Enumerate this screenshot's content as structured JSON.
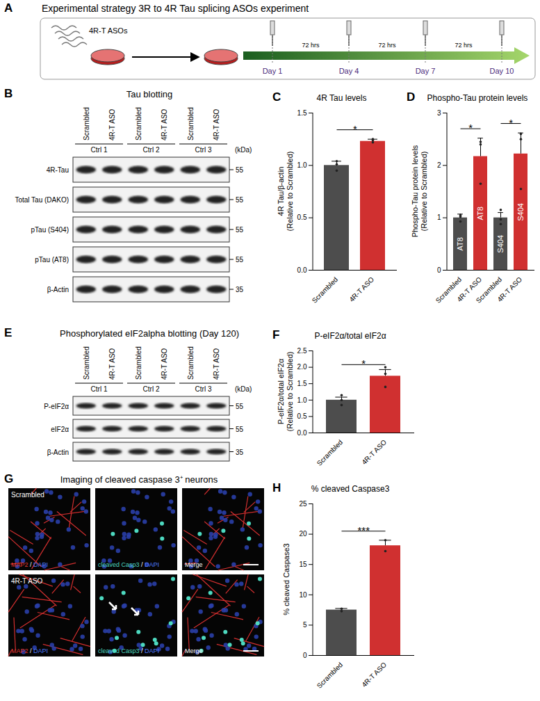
{
  "panel_a": {
    "label": "A",
    "title": "Experimental strategy 3R to 4R Tau splicing ASOs experiment",
    "reagent": "4R-T ASOs",
    "days": [
      "Day 1",
      "Day 4",
      "Day 7",
      "Day 10"
    ],
    "intervals": [
      "72 hrs",
      "72 hrs",
      "72 hrs"
    ]
  },
  "panel_b": {
    "label": "B",
    "title": "Tau blotting",
    "lanes": [
      "Scrambled",
      "4R-T ASO",
      "Scrambled",
      "4R-T ASO",
      "Scrambled",
      "4R-T ASO"
    ],
    "groups": [
      "Ctrl 1",
      "Ctrl 2",
      "Ctrl 3"
    ],
    "unit": "(kDa)",
    "rows": [
      {
        "name": "4R-Tau",
        "kDa": 55
      },
      {
        "name": "Total Tau (DAKO)",
        "kDa": 55
      },
      {
        "name": "pTau (S404)",
        "kDa": 55
      },
      {
        "name": "pTau (AT8)",
        "kDa": 55
      },
      {
        "name": "β-Actin",
        "kDa": 35
      }
    ]
  },
  "panel_e": {
    "label": "E",
    "title": "Phosphorylated eIF2alpha blotting (Day 120)",
    "lanes": [
      "Scrambled",
      "4R-T ASO",
      "Scrambled",
      "4R-T ASO",
      "Scrambled",
      "4R-T ASO"
    ],
    "groups": [
      "Ctrl 1",
      "Ctrl 2",
      "Ctrl 3"
    ],
    "unit": "(kDa)",
    "rows": [
      {
        "name": "P-eIF2α",
        "kDa": 55
      },
      {
        "name": "eIF2α",
        "kDa": 55
      },
      {
        "name": "β-Actin",
        "kDa": 35
      }
    ]
  },
  "panel_g": {
    "label": "G",
    "title": "Imaging of cleaved caspase 3⁺ neurons",
    "conditions": [
      "Scrambled",
      "4R-T ASO"
    ],
    "separator": " / ",
    "channels": [
      [
        {
          "text": "MAP2",
          "color": "#e53935"
        },
        {
          "text": "DAPI",
          "color": "#4f7bff"
        }
      ],
      [
        {
          "text": "cleaved Casp3",
          "color": "#4dd9c0"
        },
        {
          "text": "DAPI",
          "color": "#4f7bff"
        }
      ],
      [
        {
          "text": "Merge",
          "color": "#ffffff"
        }
      ]
    ]
  },
  "chart_panels": [
    "C",
    "D",
    "F",
    "H"
  ],
  "chart_data": [
    {
      "type": "bar",
      "title": "4R Tau levels",
      "y_label": "4R Tau/β-actin\n(Relative to Scrambled)",
      "categories": [
        "Scrambled",
        "4R-T ASO"
      ],
      "values": [
        1.0,
        1.23
      ],
      "errors": [
        0.04,
        0.02
      ],
      "points": [
        [
          0.95,
          1.04,
          1.01
        ],
        [
          1.22,
          1.24,
          1.25
        ]
      ],
      "colors": [
        "#4d4d4d",
        "#d03030"
      ],
      "ylim": [
        0,
        1.5
      ],
      "yticks": [
        {
          "value": 0,
          "label": "0.0"
        },
        {
          "value": 0.5,
          "label": "0.5"
        },
        {
          "value": 1,
          "label": "1.0"
        },
        {
          "value": 1.5,
          "label": "1.5"
        }
      ],
      "significance": [
        {
          "from": 0,
          "to": 1,
          "label": "*"
        }
      ]
    },
    {
      "type": "bar",
      "title": "Phospho-Tau protein levels",
      "y_label": "Phospho-Tau protein levels\n(Relative to Scrambled)",
      "categories": [
        "Scrambled",
        "4R-T ASO",
        "Scrambled",
        "4R-T ASO"
      ],
      "values": [
        1.0,
        2.17,
        1.0,
        2.22
      ],
      "errors": [
        0.07,
        0.35,
        0.1,
        0.4
      ],
      "points": [
        [
          0.93,
          1.05,
          1.02
        ],
        [
          1.65,
          2.45,
          2.4
        ],
        [
          0.88,
          1.15,
          0.97
        ],
        [
          1.55,
          2.6,
          2.5
        ]
      ],
      "bar_labels": [
        "AT8",
        "AT8",
        "S404",
        "S404"
      ],
      "colors": [
        "#4d4d4d",
        "#d03030",
        "#4d4d4d",
        "#d03030"
      ],
      "ylim": [
        0,
        3
      ],
      "yticks": [
        0,
        1,
        2,
        3
      ],
      "significance": [
        {
          "from": 0,
          "to": 1,
          "label": "*"
        },
        {
          "from": 2,
          "to": 3,
          "label": "*"
        }
      ]
    },
    {
      "type": "bar",
      "title": "P-eIF2α/total eIF2α",
      "y_label": "P-eIF2α/total eIF2α\n(Relative to Scrambled)",
      "categories": [
        "Scrambled",
        "4R-T ASO"
      ],
      "values": [
        1.0,
        1.73
      ],
      "errors": [
        0.09,
        0.2
      ],
      "points": [
        [
          0.85,
          1.15,
          1.0
        ],
        [
          1.4,
          2.0,
          1.8
        ]
      ],
      "colors": [
        "#4d4d4d",
        "#d03030"
      ],
      "ylim": [
        0,
        2.5
      ],
      "yticks": [
        {
          "value": 0,
          "label": "0.0"
        },
        {
          "value": 0.5,
          "label": "0.5"
        },
        {
          "value": 1,
          "label": "1.0"
        },
        {
          "value": 1.5,
          "label": "1.5"
        },
        {
          "value": 2,
          "label": "2.0"
        },
        {
          "value": 2.5,
          "label": "2.5"
        }
      ],
      "significance": [
        {
          "from": 0,
          "to": 1,
          "label": "*"
        }
      ]
    },
    {
      "type": "bar",
      "title": "% cleaved Caspase3",
      "y_label": "% cleaved Caspase3",
      "categories": [
        "Scrambled",
        "4R-T ASO"
      ],
      "values": [
        7.5,
        18.1
      ],
      "errors": [
        0.25,
        0.9
      ],
      "points": [
        [
          7.3,
          7.7
        ],
        [
          17.2,
          19.0
        ]
      ],
      "colors": [
        "#4d4d4d",
        "#d03030"
      ],
      "ylim": [
        0,
        25
      ],
      "yticks": [
        0,
        5,
        10,
        15,
        20,
        25
      ],
      "significance": [
        {
          "from": 0,
          "to": 1,
          "label": "***"
        }
      ]
    }
  ]
}
